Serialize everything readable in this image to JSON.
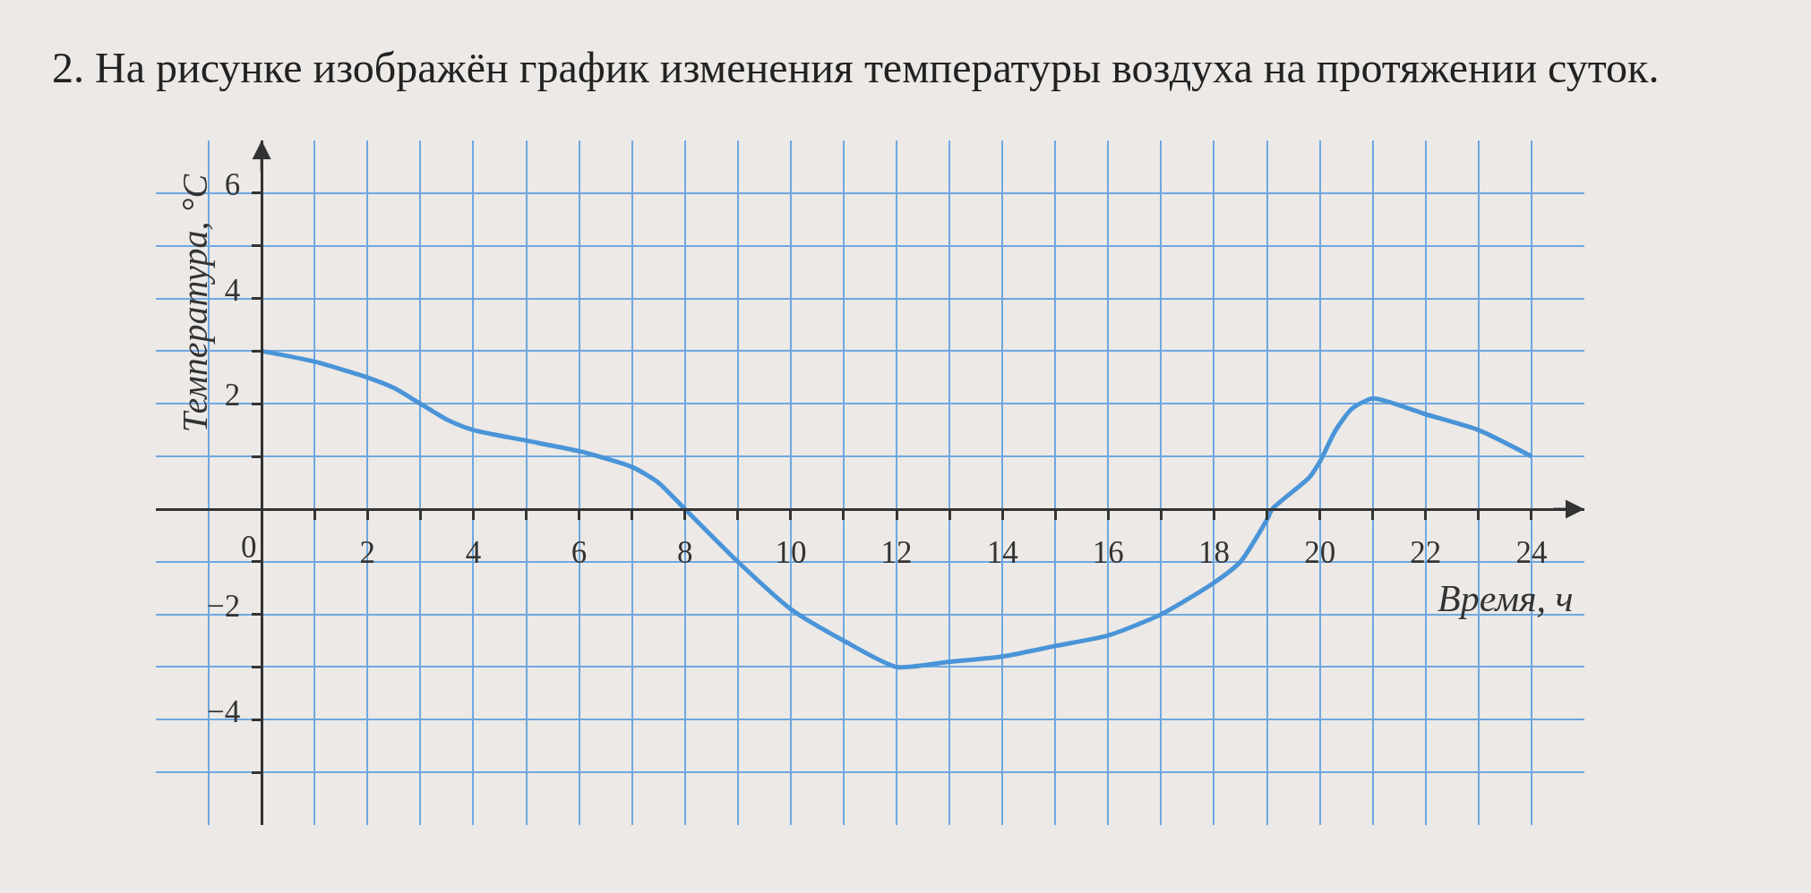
{
  "chart_data": {
    "type": "line",
    "title": "2. На рисунке изображён график изменения температуры воздуха на протяжении суток.",
    "xlabel": "Время, ч",
    "ylabel": "Температура, °C",
    "x": [
      0,
      1,
      2,
      2.5,
      3,
      3.5,
      4,
      5,
      6,
      7,
      7.5,
      8,
      9,
      10,
      11,
      12,
      13,
      14,
      15,
      16,
      17,
      18,
      18.5,
      19,
      19.1,
      19.8,
      20,
      20.3,
      20.6,
      21,
      22,
      23,
      24
    ],
    "series": [
      {
        "color": "#4a94d8",
        "values": [
          3,
          2.8,
          2.5,
          2.3,
          2,
          1.7,
          1.5,
          1.3,
          1.1,
          0.8,
          0.5,
          0,
          -1,
          -1.9,
          -2.5,
          -3,
          -2.9,
          -2.8,
          -2.6,
          -2.4,
          -2,
          -1.4,
          -1,
          -0.2,
          0,
          0.6,
          0.9,
          1.5,
          1.9,
          2.1,
          1.8,
          1.5,
          1
        ]
      }
    ],
    "xlim": [
      -2,
      25
    ],
    "ylim": [
      -6,
      7
    ],
    "xticks": [
      {
        "value": 0,
        "label": "0"
      },
      {
        "value": 1,
        "label": null
      },
      2,
      {
        "value": 3,
        "label": null
      },
      4,
      {
        "value": 5,
        "label": null
      },
      6,
      {
        "value": 7,
        "label": null
      },
      8,
      {
        "value": 9,
        "label": null
      },
      10,
      {
        "value": 11,
        "label": null
      },
      12,
      {
        "value": 13,
        "label": null
      },
      14,
      {
        "value": 15,
        "label": null
      },
      16,
      {
        "value": 17,
        "label": null
      },
      18,
      {
        "value": 19,
        "label": null
      },
      20,
      {
        "value": 21,
        "label": null
      },
      22,
      {
        "value": 23,
        "label": null
      },
      24
    ],
    "yticks": [
      {
        "value": -5,
        "label": null
      },
      {
        "value": -4,
        "label": "−4"
      },
      {
        "value": -3,
        "label": null
      },
      {
        "value": -2,
        "label": "−2"
      },
      {
        "value": -1,
        "label": null
      },
      {
        "value": 1,
        "label": null
      },
      2,
      {
        "value": 3,
        "label": null
      },
      4,
      {
        "value": 5,
        "label": null
      },
      6
    ],
    "grid": true
  }
}
